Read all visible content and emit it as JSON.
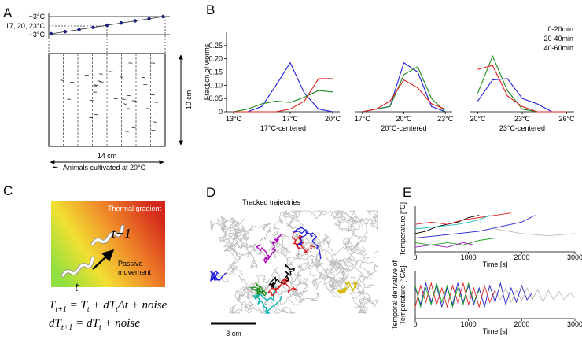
{
  "panels": {
    "A": {
      "letter": "A",
      "hot": "+3°C",
      "mid": "17, 20, 23°C",
      "cold": "−3°C",
      "height": "10 cm",
      "width": "14 cm",
      "legend_symbol": "~",
      "legend": "Animals cultivated at 20°C"
    },
    "B": {
      "letter": "B"
    },
    "C": {
      "letter": "C",
      "gradient": "Thermal gradient",
      "t_next": "t+1",
      "t_now": "t",
      "movement": [
        "Passive",
        "movement"
      ],
      "eq1": [
        "T",
        "t+1",
        " = T",
        "t",
        " + dT",
        "t",
        "Δt + noise"
      ],
      "eq2": [
        "dT",
        "t+1",
        " = dT",
        "t",
        " + noise"
      ]
    },
    "D": {
      "letter": "D",
      "title": "Tracked trajectries",
      "scale": "3 cm"
    },
    "E": {
      "letter": "E"
    }
  },
  "chart_data": [
    {
      "type": "line",
      "ylabel": "Fraction of worms",
      "xlabel": "17°C-centered",
      "x": [
        13,
        14,
        15,
        16,
        17,
        18,
        19,
        20
      ],
      "xlim": [
        12.5,
        20.5
      ],
      "ylim": [
        0,
        0.3
      ],
      "xticks": [
        {
          "value": 13,
          "label": "13°C"
        },
        {
          "value": 17,
          "label": "17°C"
        },
        {
          "value": 20,
          "label": "20°C"
        }
      ],
      "yticks": [
        0,
        0.05,
        {
          "value": 0.1,
          "label": "0.10"
        },
        0.15,
        {
          "value": 0.2,
          "label": "0.20"
        },
        0.25
      ],
      "series": [
        {
          "color": "#1f1fe0",
          "values": [
            0,
            0,
            0.02,
            0.1,
            0.185,
            0.07,
            0.01,
            0
          ]
        },
        {
          "color": "#1a8a1a",
          "values": [
            0,
            0.01,
            0.03,
            0.04,
            0.035,
            0.055,
            0.08,
            0.075
          ]
        },
        {
          "color": "#e01a1a",
          "values": [
            0,
            0,
            0,
            0,
            0.01,
            0.04,
            0.125,
            0.125
          ]
        }
      ]
    },
    {
      "type": "line",
      "xlabel": "20°C-centered",
      "x": [
        17,
        18,
        19,
        20,
        21,
        22,
        23
      ],
      "xlim": [
        16.5,
        23.5
      ],
      "ylim": [
        0,
        0.3
      ],
      "xticks": [
        {
          "value": 17,
          "label": "17°C"
        },
        {
          "value": 20,
          "label": "20°C"
        },
        {
          "value": 23,
          "label": "23°C"
        }
      ],
      "series": [
        {
          "color": "#1f1fe0",
          "values": [
            0,
            0.01,
            0.02,
            0.185,
            0.15,
            0.02,
            0
          ]
        },
        {
          "color": "#1a8a1a",
          "values": [
            0,
            0.01,
            0.02,
            0.14,
            0.17,
            0.05,
            0
          ]
        },
        {
          "color": "#e01a1a",
          "values": [
            0,
            0.01,
            0.04,
            0.12,
            0.09,
            0.03,
            0.01
          ]
        }
      ]
    },
    {
      "type": "line",
      "xlabel": "23°C-centered",
      "x": [
        20,
        21,
        22,
        23,
        24,
        25,
        26
      ],
      "xlim": [
        19.5,
        26.5
      ],
      "ylim": [
        0,
        0.3
      ],
      "xticks": [
        {
          "value": 20,
          "label": "20°C"
        },
        {
          "value": 23,
          "label": "23°C"
        },
        {
          "value": 26,
          "label": "26°C"
        }
      ],
      "series": [
        {
          "name": "0-20min",
          "color": "#1f1fe0",
          "values": [
            0.04,
            0.12,
            0.125,
            0.05,
            0.03,
            0,
            0
          ]
        },
        {
          "name": "20-40min",
          "color": "#1a8a1a",
          "values": [
            0.07,
            0.21,
            0.08,
            0.01,
            0,
            0,
            0
          ]
        },
        {
          "name": "40-60min",
          "color": "#e01a1a",
          "values": [
            0.16,
            0.175,
            0.06,
            0.02,
            0,
            0,
            0
          ]
        }
      ]
    },
    {
      "type": "line",
      "ylabel": [
        "Temperature [°C]"
      ],
      "xlabel": "Time [s]",
      "xlim": [
        0,
        3000
      ],
      "ylim": [
        0,
        10
      ],
      "xticks": [
        0,
        1000,
        2000,
        3000
      ],
      "series": [
        {
          "color": "#bbbbbb",
          "x": [
            1500,
            2000,
            2500,
            3000
          ],
          "values": [
            5,
            4,
            3.5,
            4
          ]
        },
        {
          "color": "#000000",
          "x": [
            0,
            200,
            400,
            600,
            800,
            1000,
            1200
          ],
          "values": [
            4,
            4.5,
            5.5,
            6,
            6.5,
            7.5,
            8
          ]
        },
        {
          "color": "#2020d0",
          "x": [
            0,
            400,
            800,
            1200,
            1600,
            2000,
            2250
          ],
          "values": [
            3,
            3.5,
            4,
            4.5,
            5.5,
            6.5,
            8
          ]
        },
        {
          "color": "#e02020",
          "x": [
            0,
            300,
            600,
            900,
            1200,
            1500,
            1800
          ],
          "values": [
            6,
            6.5,
            6,
            7,
            7.5,
            8,
            8.5
          ]
        },
        {
          "color": "#20a020",
          "x": [
            0,
            300,
            600,
            900,
            1200,
            1500
          ],
          "values": [
            2,
            1.5,
            2,
            1.5,
            2.5,
            3
          ]
        },
        {
          "color": "#20c0c0",
          "x": [
            0,
            400,
            800,
            1200,
            1400
          ],
          "values": [
            5,
            5.5,
            6,
            7,
            8
          ]
        },
        {
          "color": "#a020c0",
          "x": [
            0,
            300,
            600,
            900,
            1100
          ],
          "values": [
            1,
            1.5,
            1,
            2,
            1.5
          ]
        }
      ]
    },
    {
      "type": "line",
      "ylabel": [
        "Temporal derivative of",
        "Temperature [°C/s]"
      ],
      "xlabel": "Time [s]",
      "xlim": [
        0,
        3000
      ],
      "ylim": [
        -1,
        1
      ],
      "xticks": [
        0,
        1000,
        2000,
        3000
      ],
      "series": [
        {
          "color": "#bbbbbb",
          "x": [
            1500,
            1600,
            1700,
            1800,
            1900,
            2000,
            2100,
            2200,
            2300,
            2400,
            2500,
            2600,
            2700,
            2800,
            2900,
            3000
          ],
          "values": [
            0.2,
            -0.2,
            0.3,
            -0.3,
            0.2,
            -0.25,
            0.3,
            -0.2,
            0.25,
            -0.3,
            0.2,
            -0.2,
            0.15,
            -0.2,
            0.1,
            -0.1
          ]
        },
        {
          "color": "#2020d0",
          "x": [
            0,
            100,
            200,
            300,
            400,
            500,
            600,
            700,
            800,
            900,
            1000,
            1100,
            1200,
            1300,
            1400,
            1500,
            1600,
            1700,
            1800,
            1900,
            2000,
            2100,
            2200
          ],
          "values": [
            0.3,
            -0.4,
            0.5,
            -0.3,
            0.4,
            -0.5,
            0.3,
            -0.4,
            0.5,
            -0.3,
            0.4,
            -0.4,
            0.3,
            -0.5,
            0.4,
            -0.3,
            0.5,
            -0.4,
            0.3,
            -0.3,
            0.4,
            -0.2,
            0.1
          ]
        },
        {
          "color": "#e02020",
          "x": [
            0,
            100,
            200,
            300,
            400,
            500,
            600,
            700,
            800,
            900,
            1000,
            1100,
            1200,
            1300,
            1400,
            1500
          ],
          "values": [
            -0.5,
            0.4,
            -0.3,
            0.5,
            -0.4,
            0.3,
            -0.5,
            0.4,
            -0.3,
            0.5,
            -0.4,
            0.3,
            -0.5,
            0.4,
            -0.3,
            0.2
          ]
        },
        {
          "color": "#20a020",
          "x": [
            0,
            100,
            200,
            300,
            400,
            500,
            600,
            700,
            800,
            900,
            1000,
            1100,
            1200
          ],
          "values": [
            0.4,
            -0.5,
            0.3,
            -0.4,
            0.5,
            -0.3,
            0.4,
            -0.5,
            0.3,
            -0.4,
            0.5,
            -0.3,
            0.2
          ]
        }
      ]
    }
  ]
}
